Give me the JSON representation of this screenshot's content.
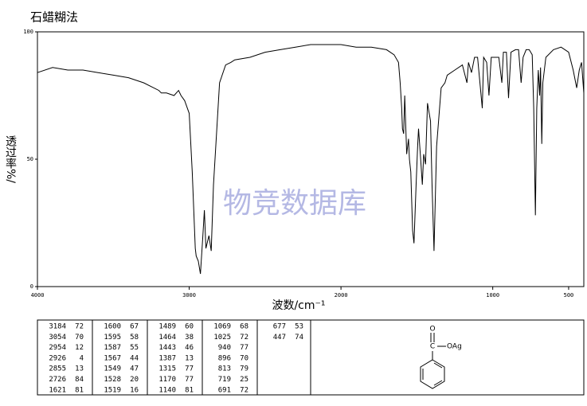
{
  "chart_data": {
    "type": "line",
    "title": "石蜡糊法",
    "xlabel": "波数/cm⁻¹",
    "ylabel": "透过率%/",
    "watermark": "物竞数据库",
    "xlim": [
      4000,
      400
    ],
    "ylim": [
      0,
      100
    ],
    "xticks": [
      4000,
      3000,
      2000,
      1000,
      500
    ],
    "yticks": [
      0,
      50,
      100
    ],
    "series": [
      {
        "color": "#000000",
        "x": [
          4000,
          3900,
          3800,
          3700,
          3600,
          3500,
          3400,
          3300,
          3200,
          3184,
          3150,
          3100,
          3070,
          3054,
          3030,
          3000,
          2980,
          2960,
          2954,
          2940,
          2926,
          2910,
          2900,
          2890,
          2870,
          2855,
          2840,
          2800,
          2760,
          2726,
          2700,
          2600,
          2500,
          2400,
          2300,
          2200,
          2100,
          2000,
          1900,
          1800,
          1700,
          1650,
          1621,
          1610,
          1600,
          1595,
          1587,
          1580,
          1567,
          1555,
          1549,
          1540,
          1528,
          1519,
          1505,
          1495,
          1489,
          1475,
          1464,
          1455,
          1443,
          1430,
          1410,
          1400,
          1387,
          1370,
          1340,
          1315,
          1300,
          1250,
          1200,
          1170,
          1160,
          1140,
          1120,
          1100,
          1069,
          1060,
          1040,
          1025,
          1010,
          980,
          960,
          940,
          930,
          910,
          896,
          880,
          850,
          830,
          813,
          800,
          780,
          760,
          740,
          730,
          719,
          710,
          700,
          691,
          685,
          677,
          670,
          650,
          600,
          550,
          500,
          470,
          447,
          430,
          415,
          400
        ],
        "values": [
          84,
          86,
          85,
          85,
          84,
          83,
          82,
          80,
          77,
          76,
          76,
          75,
          77,
          75,
          73,
          68,
          45,
          15,
          12,
          10,
          5,
          20,
          30,
          15,
          20,
          14,
          40,
          80,
          87,
          88,
          89,
          90,
          92,
          93,
          94,
          95,
          95,
          95,
          94,
          94,
          93,
          91,
          88,
          80,
          70,
          62,
          60,
          75,
          52,
          58,
          50,
          45,
          22,
          17,
          40,
          55,
          62,
          50,
          40,
          52,
          48,
          72,
          65,
          40,
          14,
          55,
          78,
          80,
          83,
          85,
          87,
          80,
          88,
          84,
          90,
          90,
          70,
          90,
          88,
          75,
          90,
          90,
          90,
          80,
          92,
          92,
          74,
          92,
          93,
          93,
          80,
          90,
          93,
          93,
          91,
          70,
          28,
          70,
          85,
          75,
          86,
          56,
          80,
          90,
          93,
          94,
          92,
          85,
          78,
          85,
          88,
          76
        ]
      }
    ]
  },
  "peak_table": [
    [
      [
        "3184",
        "72"
      ],
      [
        "3054",
        "70"
      ],
      [
        "2954",
        "12"
      ],
      [
        "2926",
        "4"
      ],
      [
        "2855",
        "13"
      ],
      [
        "2726",
        "84"
      ],
      [
        "1621",
        "81"
      ]
    ],
    [
      [
        "1600",
        "67"
      ],
      [
        "1595",
        "58"
      ],
      [
        "1587",
        "55"
      ],
      [
        "1567",
        "44"
      ],
      [
        "1549",
        "47"
      ],
      [
        "1528",
        "20"
      ],
      [
        "1519",
        "16"
      ]
    ],
    [
      [
        "1489",
        "60"
      ],
      [
        "1464",
        "38"
      ],
      [
        "1443",
        "46"
      ],
      [
        "1387",
        "13"
      ],
      [
        "1315",
        "77"
      ],
      [
        "1170",
        "77"
      ],
      [
        "1140",
        "81"
      ]
    ],
    [
      [
        "1069",
        "68"
      ],
      [
        "1025",
        "72"
      ],
      [
        "940",
        "77"
      ],
      [
        "896",
        "70"
      ],
      [
        "813",
        "79"
      ],
      [
        "719",
        "25"
      ],
      [
        "691",
        "72"
      ]
    ],
    [
      [
        "677",
        "53"
      ],
      [
        "447",
        "74"
      ]
    ]
  ],
  "structure": {
    "labels": [
      "O",
      "C",
      "OAg"
    ]
  }
}
